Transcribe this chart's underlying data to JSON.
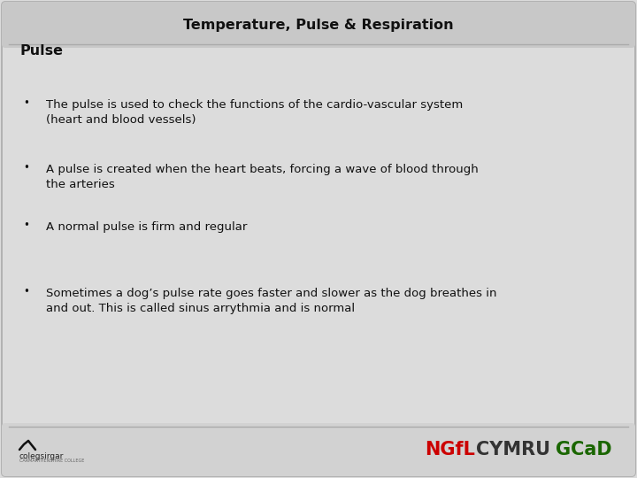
{
  "title": "Temperature, Pulse & Respiration",
  "section_heading": "Pulse",
  "bullets": [
    "The pulse is used to check the functions of the cardio-vascular system\n(heart and blood vessels)",
    "A pulse is created when the heart beats, forcing a wave of blood through\nthe arteries",
    "A normal pulse is firm and regular",
    "Sometimes a dog’s pulse rate goes faster and slower as the dog breathes in\nand out. This is called sinus arrythmia and is normal"
  ],
  "bg_color": "#dcdcdc",
  "header_bg": "#c8c8c8",
  "title_color": "#111111",
  "heading_color": "#111111",
  "bullet_color": "#111111",
  "footer_bg": "#d2d2d2",
  "ngfl_color": "#cc0000",
  "cymru_color": "#333333",
  "gcad_color": "#1a6600",
  "border_color": "#aaaaaa",
  "white_area_color": "#e8e8e8"
}
